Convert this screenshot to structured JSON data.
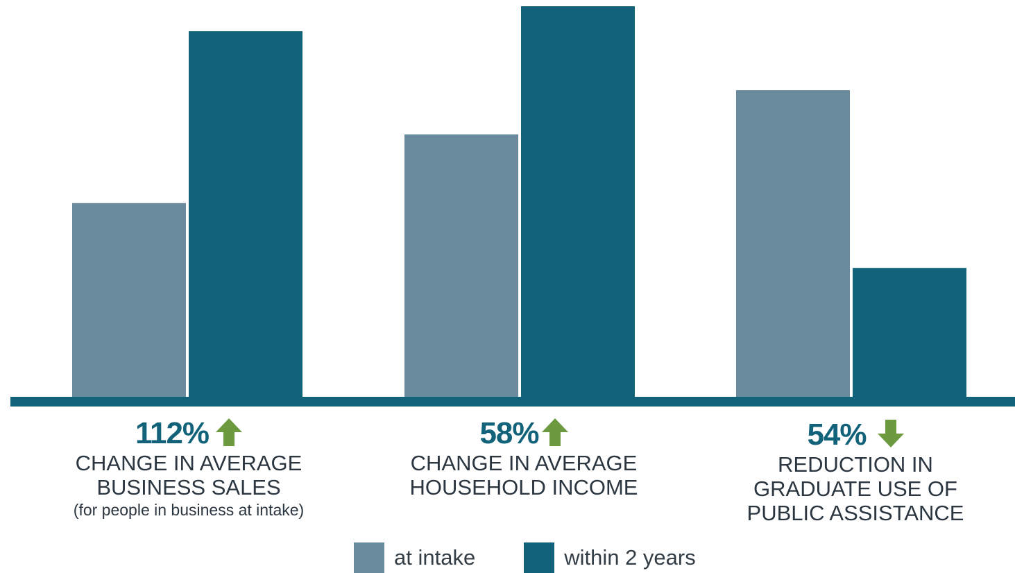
{
  "colors": {
    "at_intake": "#6a8a9d",
    "within_2_years": "#12627a",
    "baseline": "#12627a",
    "arrow": "#6d9a3e",
    "percent_text": "#12627a"
  },
  "chart_data": {
    "type": "bar",
    "title": "",
    "xlabel": "",
    "ylabel": "",
    "ylim": [
      0,
      100
    ],
    "grid": false,
    "legend_placement": "bottom-center",
    "categories": [
      "CHANGE IN AVERAGE BUSINESS SALES",
      "CHANGE IN AVERAGE HOUSEHOLD INCOME",
      "REDUCTION IN GRADUATE USE OF PUBLIC ASSISTANCE"
    ],
    "series": [
      {
        "name": "at intake",
        "values": [
          49.6,
          67.2,
          78.5
        ]
      },
      {
        "name": "within 2 years",
        "values": [
          93.6,
          100,
          33.0
        ]
      }
    ]
  },
  "groups": [
    {
      "percent": "112%",
      "arrow_icon": "arrow-up-icon",
      "lines": [
        "CHANGE IN AVERAGE",
        "BUSINESS SALES"
      ],
      "note": "(for people in business at intake)"
    },
    {
      "percent": "58%",
      "arrow_icon": "arrow-up-icon",
      "lines": [
        "CHANGE IN AVERAGE",
        "HOUSEHOLD INCOME"
      ],
      "note": ""
    },
    {
      "percent": "54%",
      "arrow_icon": "arrow-down-icon",
      "lines": [
        "REDUCTION IN",
        "GRADUATE USE OF",
        "PUBLIC ASSISTANCE"
      ],
      "note": ""
    }
  ],
  "legend": {
    "at_intake": "at intake",
    "within_2_years": "within 2 years"
  }
}
